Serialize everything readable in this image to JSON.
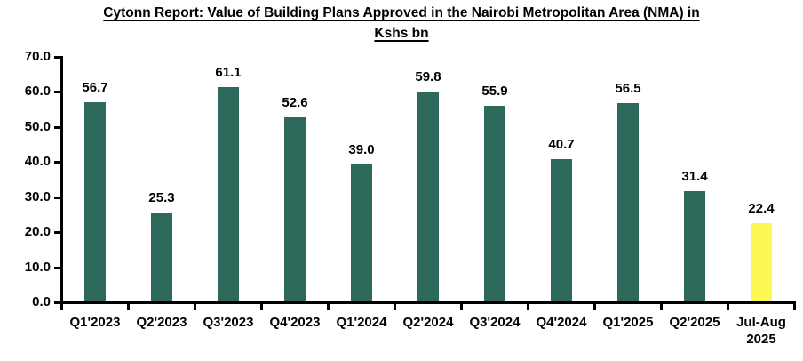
{
  "title": {
    "line1": "Cytonn Report: Value of Building Plans Approved in the Nairobi Metropolitan Area (NMA) in",
    "line2": "Kshs bn"
  },
  "chart_data": {
    "type": "bar",
    "title": "Cytonn Report: Value of Building Plans Approved in the Nairobi Metropolitan Area (NMA) in Kshs bn",
    "categories": [
      "Q1'2023",
      "Q2'2023",
      "Q3'2023",
      "Q4'2023",
      "Q1'2024",
      "Q2'2024",
      "Q3'2024",
      "Q4'2024",
      "Q1'2025",
      "Q2'2025",
      "Jul-Aug 2025"
    ],
    "values": [
      56.7,
      25.3,
      61.1,
      52.6,
      39.0,
      59.8,
      55.9,
      40.7,
      56.5,
      31.4,
      22.4
    ],
    "data_labels": [
      "56.7",
      "25.3",
      "61.1",
      "52.6",
      "39.0",
      "59.8",
      "55.9",
      "40.7",
      "56.5",
      "31.4",
      "22.4"
    ],
    "bar_colors": [
      "#2E6A5B",
      "#2E6A5B",
      "#2E6A5B",
      "#2E6A5B",
      "#2E6A5B",
      "#2E6A5B",
      "#2E6A5B",
      "#2E6A5B",
      "#2E6A5B",
      "#2E6A5B",
      "#FCF952"
    ],
    "xlabel": "",
    "ylabel": "",
    "ylim": [
      0,
      70
    ],
    "yticks": [
      "0.0",
      "10.0",
      "20.0",
      "30.0",
      "40.0",
      "50.0",
      "60.0",
      "70.0"
    ],
    "grid": false,
    "legend": false,
    "colors": {
      "bar_default": "#2E6A5B",
      "bar_highlight": "#FCF952",
      "axis": "#000000",
      "text": "#000000"
    }
  }
}
